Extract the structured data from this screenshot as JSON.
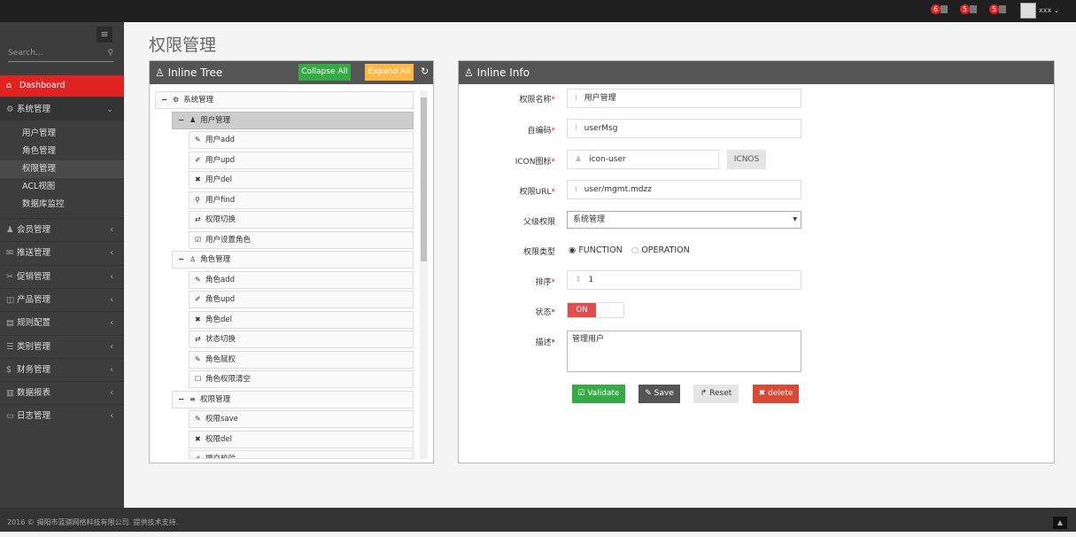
{
  "topbar": {
    "badges": [
      {
        "count": "6",
        "icon": "bell-icon"
      },
      {
        "count": "5",
        "icon": "envelope-icon"
      },
      {
        "count": "5",
        "icon": "tasks-icon"
      }
    ],
    "user": "xxx"
  },
  "sidebar": {
    "search_placeholder": "Search...",
    "dashboard": "Dashboard",
    "group": "系统管理",
    "subitems": [
      "用户管理",
      "角色管理",
      "权限管理",
      "ACL视图",
      "数据库监控"
    ],
    "items": [
      "会员管理",
      "推送管理",
      "促销管理",
      "产品管理",
      "规则配置",
      "类别管理",
      "财务管理",
      "数据报表",
      "日志管理"
    ]
  },
  "page": {
    "title": "权限管理"
  },
  "tree": {
    "title": "Inline Tree",
    "collapse": "Collapse All",
    "expand": "Expand All",
    "nodes": [
      {
        "label": "系统管理",
        "level": 0,
        "icon": "cogs-icon"
      },
      {
        "label": "用户管理",
        "level": 1,
        "icon": "user-icon"
      },
      {
        "label": "用户add",
        "level": 2,
        "icon": "pencil-icon"
      },
      {
        "label": "用户upd",
        "level": 2,
        "icon": "edit-icon"
      },
      {
        "label": "用户del",
        "level": 2,
        "icon": "times-icon"
      },
      {
        "label": "用户find",
        "level": 2,
        "icon": "search-icon"
      },
      {
        "label": "权限切换",
        "level": 2,
        "icon": "retweet-icon"
      },
      {
        "label": "用户设置角色",
        "level": 2,
        "icon": "check-square-icon"
      },
      {
        "label": "角色管理",
        "level": 1,
        "icon": "sitemap-icon"
      },
      {
        "label": "角色add",
        "level": 2,
        "icon": "pencil-icon"
      },
      {
        "label": "角色upd",
        "level": 2,
        "icon": "edit-icon"
      },
      {
        "label": "角色del",
        "level": 2,
        "icon": "times-icon"
      },
      {
        "label": "状态切换",
        "level": 2,
        "icon": "retweet-icon"
      },
      {
        "label": "角色赋权",
        "level": 2,
        "icon": "pencil-icon"
      },
      {
        "label": "角色权限清空",
        "level": 2,
        "icon": "square-icon"
      },
      {
        "label": "权限管理",
        "level": 1,
        "icon": "bars-icon"
      },
      {
        "label": "权限save",
        "level": 2,
        "icon": "pencil-icon"
      },
      {
        "label": "权限del",
        "level": 2,
        "icon": "times-icon"
      },
      {
        "label": "提交校验",
        "level": 2,
        "icon": "edit-icon"
      }
    ]
  },
  "info": {
    "title": "Inline Info",
    "name_label": "权限名称",
    "name": "用户管理",
    "code_label": "自编码",
    "code": "userMsg",
    "icon_label": "ICON图标",
    "icon": "icon-user",
    "icnos": "ICNOS",
    "url_label": "权限URL",
    "url": "user/mgmt.mdzz",
    "parent_label": "父级权限",
    "parent": "系统管理",
    "type_label": "权限类型",
    "type_options": [
      "FUNCTION",
      "OPERATION"
    ],
    "type_selected": "FUNCTION",
    "order_label": "排序",
    "order": "1",
    "status_label": "状态",
    "status": "ON",
    "desc_label": "描述",
    "desc": "管理用户",
    "validate": "Validate",
    "save": "Save",
    "reset": "Reset",
    "delete": "delete"
  },
  "footer": "2016 © 揭阳市蓝骐网络科技有限公司. 提供技术支持.",
  "colors": {
    "accent": "#e02222",
    "green": "#35aa47",
    "orange": "#ffb848"
  }
}
